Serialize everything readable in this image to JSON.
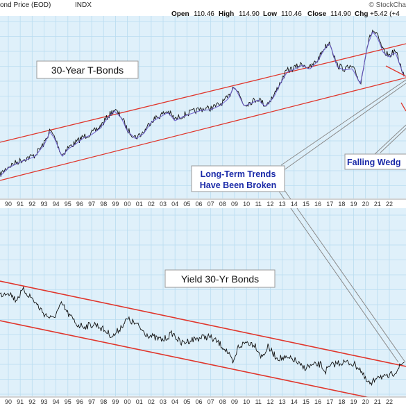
{
  "header": {
    "title": "ond Price (EOD)",
    "exchange": "INDX",
    "open_label": "Open",
    "open_value": "110.46",
    "high_label": "High",
    "high_value": "114.90",
    "low_label": "Low",
    "low_value": "110.46",
    "close_label": "Close",
    "close_value": "114.90",
    "chg_label": "Chg",
    "chg_value": "+5.42 (+4",
    "watermark": "© StockCha"
  },
  "annotations": {
    "top_label": "30-Year T-Bonds",
    "bottom_label": "Yield 30-Yr Bonds",
    "trends_line1": "Long-Term Trends",
    "trends_line2": "Have Been Broken",
    "wedge": "Falling Wedg"
  },
  "colors": {
    "panel_bg": "#dff0fa",
    "grid": "#b9dcf0",
    "channel": "#e0362c",
    "price": "#111111",
    "ma": "#6a5acd",
    "annotation_text": "#1a2aa8",
    "callout_line": "#8a8a8a"
  },
  "chart_data": [
    {
      "type": "line",
      "title": "30-Year T-Bonds",
      "x_ticks": [
        "90",
        "91",
        "92",
        "93",
        "94",
        "95",
        "96",
        "97",
        "98",
        "99",
        "00",
        "01",
        "02",
        "03",
        "04",
        "05",
        "06",
        "07",
        "08",
        "09",
        "10",
        "11",
        "12",
        "13",
        "14",
        "15",
        "16",
        "17",
        "18",
        "19",
        "20",
        "21",
        "22"
      ],
      "x_range": [
        1989.3,
        2023.4
      ],
      "series": [
        {
          "x": [
            1989.3,
            1990.0,
            1990.8,
            1991.5,
            1992.2,
            1993.0,
            1993.5,
            1993.9,
            1994.5,
            1995.0,
            1995.7,
            1996.3,
            1997.0,
            1997.7,
            1998.4,
            1998.9,
            1999.5,
            2000.0,
            2000.7,
            2001.4,
            2002.0,
            2002.7,
            2003.4,
            2004.0,
            2004.8,
            2005.5,
            2006.2,
            2007.0,
            2007.8,
            2008.5,
            2008.95,
            2009.3,
            2009.8,
            2010.5,
            2011.0,
            2011.6,
            2012.3,
            2012.8,
            2013.4,
            2014.0,
            2014.7,
            2015.3,
            2016.0,
            2016.5,
            2017.0,
            2017.6,
            2018.2,
            2018.9,
            2019.6,
            2020.0,
            2020.2,
            2020.6,
            2021.0,
            2021.5,
            2022.0,
            2022.5,
            2022.9,
            2023.3
          ],
          "y": [
            252,
            240,
            233,
            228,
            224,
            207,
            188,
            198,
            224,
            213,
            205,
            197,
            192,
            183,
            167,
            158,
            168,
            187,
            198,
            190,
            174,
            167,
            160,
            172,
            165,
            161,
            157,
            156,
            150,
            140,
            122,
            133,
            151,
            146,
            142,
            152,
            138,
            120,
            102,
            98,
            92,
            98,
            86,
            70,
            60,
            94,
            99,
            97,
            120,
            78,
            62,
            44,
            52,
            74,
            80,
            73,
            92,
            112
          ]
        }
      ]
    },
    {
      "type": "line",
      "title": "Yield 30-Yr Bonds",
      "x_ticks": [
        "90",
        "91",
        "92",
        "93",
        "94",
        "95",
        "96",
        "97",
        "98",
        "99",
        "00",
        "01",
        "02",
        "03",
        "04",
        "05",
        "06",
        "07",
        "08",
        "09",
        "10",
        "11",
        "12",
        "13",
        "14",
        "15",
        "16",
        "17",
        "18",
        "19",
        "20",
        "21",
        "22"
      ],
      "x_range": [
        1989.3,
        2023.4
      ],
      "series": [
        {
          "x": [
            1989.3,
            1990.0,
            1990.6,
            1991.3,
            1992.0,
            1993.0,
            1993.7,
            1994.5,
            1995.0,
            1995.8,
            1996.5,
            1997.3,
            1998.0,
            1998.8,
            1999.5,
            2000.0,
            2000.8,
            2001.5,
            2002.3,
            2003.0,
            2003.8,
            2004.5,
            2005.3,
            2006.0,
            2006.8,
            2007.5,
            2008.3,
            2008.9,
            2009.3,
            2010.0,
            2010.7,
            2011.3,
            2011.8,
            2012.5,
            2013.3,
            2014.0,
            2014.7,
            2015.5,
            2016.2,
            2016.6,
            2017.3,
            2018.0,
            2018.8,
            2019.5,
            2020.0,
            2020.5,
            2021.0,
            2021.7,
            2022.2,
            2022.8,
            2023.3
          ],
          "y": [
            425,
            420,
            432,
            418,
            430,
            452,
            460,
            438,
            452,
            468,
            470,
            467,
            475,
            485,
            470,
            460,
            468,
            480,
            487,
            490,
            480,
            495,
            490,
            487,
            485,
            492,
            504,
            525,
            500,
            493,
            496,
            515,
            500,
            515,
            517,
            518,
            530,
            527,
            525,
            535,
            525,
            522,
            523,
            530,
            548,
            555,
            540,
            545,
            540,
            530,
            520
          ]
        }
      ]
    }
  ]
}
